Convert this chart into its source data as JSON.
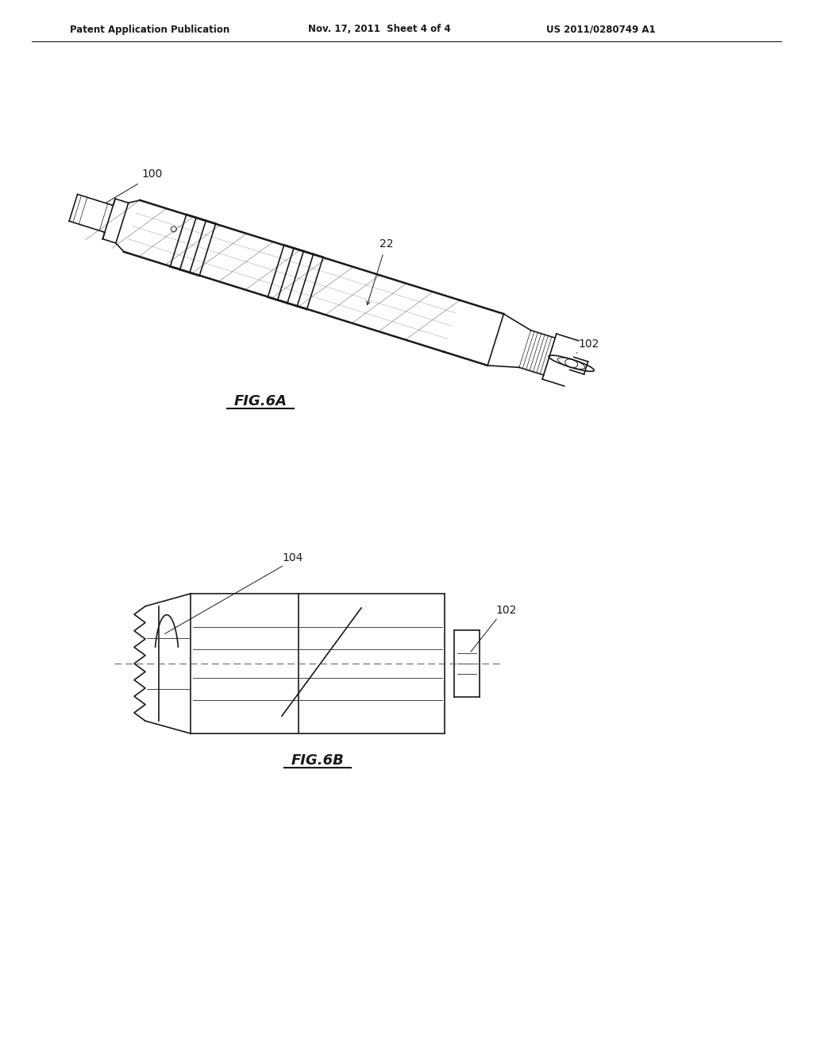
{
  "bg_color": "#ffffff",
  "line_color": "#1a1a1a",
  "header_left": "Patent Application Publication",
  "header_mid": "Nov. 17, 2011  Sheet 4 of 4",
  "header_right": "US 2011/0280749 A1",
  "fig6a_label": "FIG.6A",
  "fig6b_label": "FIG.6B",
  "label_100": "100",
  "label_22": "22",
  "label_102a": "102",
  "label_104": "104",
  "label_102b": "102"
}
